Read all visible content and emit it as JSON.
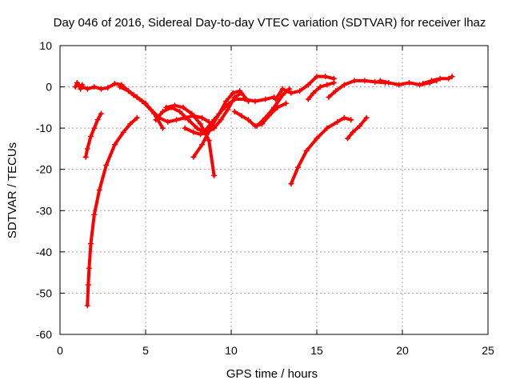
{
  "chart_data": {
    "type": "scatter",
    "title": "Day 046 of 2016, Sidereal Day-to-day VTEC variation (SDTVAR) for receiver lhaz",
    "xlabel": "GPS time / hours",
    "ylabel": "SDTVAR / TECUs",
    "xlim": [
      0,
      25
    ],
    "ylim": [
      -60,
      10
    ],
    "xticks": [
      0,
      5,
      10,
      15,
      20,
      25
    ],
    "yticks": [
      -60,
      -50,
      -40,
      -30,
      -20,
      -10,
      0,
      10
    ],
    "grid": true,
    "marker": "plus",
    "color": "#ff0000",
    "series": [
      {
        "name": "s1",
        "x": [
          0.9,
          1.0,
          1.1,
          1.2,
          1.3
        ],
        "y": [
          0,
          1,
          0.5,
          -0.5,
          0.5
        ]
      },
      {
        "name": "s2",
        "x": [
          1.3,
          1.6,
          2.0,
          2.4,
          2.8,
          3.2,
          3.6,
          4.0,
          4.3
        ],
        "y": [
          0,
          -0.5,
          0,
          -0.5,
          -0.2,
          0.8,
          0.5,
          -1.0,
          -2.0
        ]
      },
      {
        "name": "s3",
        "x": [
          1.5,
          1.6,
          1.8,
          2.0,
          2.2,
          2.4
        ],
        "y": [
          -17,
          -15,
          -12,
          -10,
          -8,
          -6.5
        ]
      },
      {
        "name": "s4",
        "x": [
          1.6,
          1.65,
          1.7,
          1.8,
          2.0,
          2.3,
          2.7,
          3.2,
          3.7,
          4.1,
          4.5
        ],
        "y": [
          -53,
          -48,
          -44,
          -38,
          -31,
          -25,
          -19,
          -14,
          -11,
          -9,
          -7.5
        ]
      },
      {
        "name": "s5",
        "x": [
          3.5,
          4.0,
          4.5,
          5.0,
          5.5,
          6.0
        ],
        "y": [
          0,
          -1,
          -2.5,
          -4,
          -6.5,
          -10
        ]
      },
      {
        "name": "s6",
        "x": [
          4.3,
          4.8,
          5.3,
          5.8,
          6.3,
          6.8,
          7.3,
          7.8,
          8.3,
          8.7
        ],
        "y": [
          -2,
          -3.5,
          -5.5,
          -7.5,
          -8.5,
          -8,
          -7.5,
          -7,
          -7.5,
          -8.5
        ]
      },
      {
        "name": "s7",
        "x": [
          5.6,
          6.0,
          6.5,
          7.0,
          7.5,
          8.0,
          8.4
        ],
        "y": [
          -8,
          -6,
          -5,
          -6,
          -8,
          -10,
          -11
        ]
      },
      {
        "name": "s8",
        "x": [
          6.2,
          6.7,
          7.2,
          7.7,
          8.2,
          8.7,
          9.0
        ],
        "y": [
          -5,
          -4.5,
          -5,
          -6.5,
          -9,
          -13,
          -21.5
        ]
      },
      {
        "name": "s9",
        "x": [
          7.3,
          7.8,
          8.2,
          8.6,
          9.0,
          9.4,
          9.8,
          10.2,
          10.6,
          11.0
        ],
        "y": [
          -10,
          -11,
          -11.5,
          -11,
          -10,
          -8,
          -5.5,
          -2.5,
          -1.5,
          -3.5
        ]
      },
      {
        "name": "s10",
        "x": [
          7.8,
          8.3,
          8.8,
          9.3,
          9.7,
          10.1,
          10.5
        ],
        "y": [
          -17,
          -14,
          -10,
          -6.5,
          -3.5,
          -1.5,
          -1.0
        ]
      },
      {
        "name": "s11",
        "x": [
          8.4,
          9.0,
          9.6,
          10.2,
          10.8,
          11.4,
          12.0,
          12.5
        ],
        "y": [
          -11,
          -8,
          -5,
          -3,
          -3,
          -3.5,
          -3,
          -2.5
        ]
      },
      {
        "name": "s12",
        "x": [
          10.2,
          10.6,
          11.0,
          11.4,
          11.8,
          12.2,
          12.7,
          13.2
        ],
        "y": [
          -6,
          -7,
          -8,
          -9.5,
          -9,
          -7,
          -5,
          -4
        ]
      },
      {
        "name": "s13",
        "x": [
          11.5,
          12.0,
          12.5,
          13.0,
          13.4
        ],
        "y": [
          -9.5,
          -7.5,
          -5,
          -2,
          -0.5
        ]
      },
      {
        "name": "s14",
        "x": [
          12.6,
          13.0,
          13.5,
          14.0,
          14.5,
          15.0,
          15.5,
          16.0
        ],
        "y": [
          -3,
          -0.5,
          -1.5,
          -1,
          0.5,
          2.5,
          2.5,
          2.0
        ]
      },
      {
        "name": "s15",
        "x": [
          13.5,
          13.9,
          14.4,
          15.0,
          15.6,
          16.2,
          16.6,
          17.0
        ],
        "y": [
          -23.5,
          -19.5,
          -15.5,
          -12.5,
          -10,
          -8.5,
          -7.5,
          -8
        ]
      },
      {
        "name": "s16",
        "x": [
          14.5,
          14.8,
          15.2,
          15.6,
          16.0
        ],
        "y": [
          -3,
          -1.5,
          0,
          0.5,
          1
        ]
      },
      {
        "name": "s17",
        "x": [
          15.7,
          16.1,
          16.6,
          17.2,
          17.8,
          18.4,
          19.0
        ],
        "y": [
          -2.5,
          -1.0,
          0.5,
          1.5,
          1.5,
          1.2,
          1.0
        ]
      },
      {
        "name": "s18",
        "x": [
          16.8,
          17.1,
          17.5,
          17.9
        ],
        "y": [
          -12.5,
          -11,
          -9.5,
          -7.5
        ]
      },
      {
        "name": "s19",
        "x": [
          18.7,
          19.2,
          19.8,
          20.4,
          21.0,
          21.6,
          22.0
        ],
        "y": [
          1.5,
          1.0,
          0.5,
          1.0,
          0.5,
          1.0,
          1.5
        ]
      },
      {
        "name": "s20",
        "x": [
          21.2,
          21.7,
          22.2,
          22.7,
          22.9
        ],
        "y": [
          0.8,
          1.5,
          2.0,
          2.0,
          2.5
        ]
      }
    ]
  }
}
